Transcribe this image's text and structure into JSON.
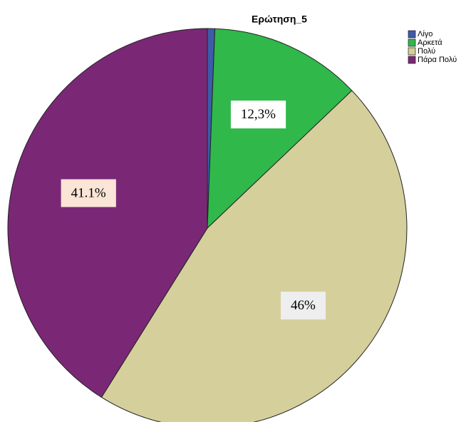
{
  "chart_data": {
    "type": "pie",
    "title": "Ερώτηση_5",
    "categories": [
      "Λίγο",
      "Αρκετά",
      "Πολύ",
      "Πάρα Πολύ"
    ],
    "values": [
      0.6,
      12.3,
      46,
      41.1
    ],
    "value_labels": [
      null,
      "12,3%",
      "46%",
      "41.1%"
    ],
    "colors": [
      "#3d5ba9",
      "#30b84b",
      "#d5cf9b",
      "#7a2876"
    ],
    "label_colors": [
      null,
      "#ffffff",
      "#eeeeee",
      "#fbe5d6"
    ],
    "legend": "top-right"
  }
}
